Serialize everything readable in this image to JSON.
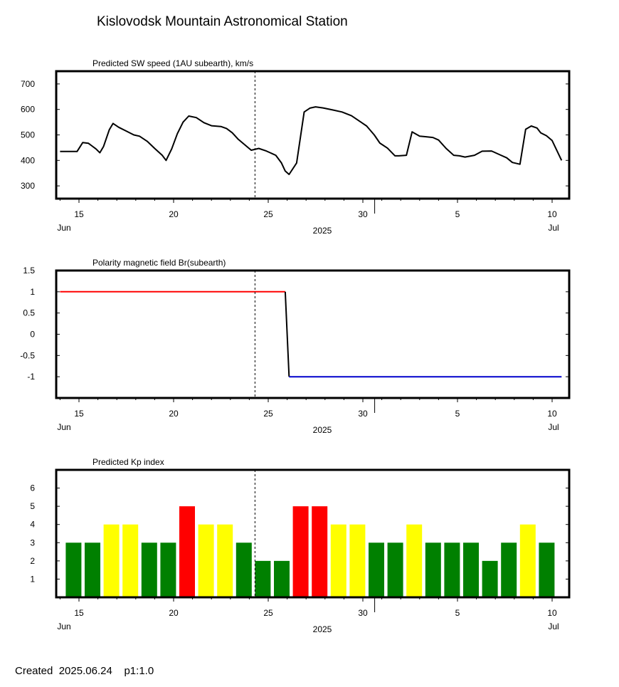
{
  "page": {
    "title": "Kislovodsk Mountain Astronomical Station",
    "footer_created_label": "Created",
    "footer_date": "2025.06.24",
    "footer_page": "p1:1.0"
  },
  "colors": {
    "line": "#000000",
    "positive_polarity": "#ff0000",
    "negative_polarity": "#0000cc",
    "kp_low": "#008000",
    "kp_mid": "#ffff00",
    "kp_high": "#ff0000"
  },
  "time_axis": {
    "start": "2025-06-14",
    "end": "2025-07-10",
    "ticks": [
      {
        "day": "2025-06-15",
        "label": "15"
      },
      {
        "day": "2025-06-20",
        "label": "20"
      },
      {
        "day": "2025-06-25",
        "label": "25"
      },
      {
        "day": "2025-06-30",
        "label": "30"
      },
      {
        "day": "2025-07-05",
        "label": "5"
      },
      {
        "day": "2025-07-10",
        "label": "10"
      }
    ],
    "month_labels": [
      {
        "day": "2025-06-14",
        "label": "Jun"
      },
      {
        "day": "2025-07-10",
        "label": "Jul"
      }
    ],
    "month_boundary": "2025-07-01",
    "year_label": "2025",
    "current_time_marker": "2025-06-24"
  },
  "chart_data": [
    {
      "type": "line",
      "title": "Predicted SW speed (1AU subearth), km/s",
      "xlabel": "2025",
      "ylabel": "",
      "ylim": [
        250,
        750
      ],
      "yticks": [
        "300",
        "400",
        "500",
        "600",
        "700"
      ],
      "series": [
        {
          "x": [
            "2025-06-14",
            "2025-06-14.9",
            "2025-06-15.2",
            "2025-06-15.5",
            "2025-06-15.9",
            "2025-06-16.1",
            "2025-06-16.3",
            "2025-06-16.6",
            "2025-06-16.8",
            "2025-06-17.1",
            "2025-06-17.5",
            "2025-06-17.9",
            "2025-06-18.2",
            "2025-06-18.6",
            "2025-06-19",
            "2025-06-19.4",
            "2025-06-19.6",
            "2025-06-19.9",
            "2025-06-20.2",
            "2025-06-20.5",
            "2025-06-20.8",
            "2025-06-21.2",
            "2025-06-21.6",
            "2025-06-22",
            "2025-06-22.5",
            "2025-06-22.8",
            "2025-06-23.1",
            "2025-06-23.4",
            "2025-06-23.7",
            "2025-06-24.1",
            "2025-06-24.5",
            "2025-06-24.9",
            "2025-06-25.4",
            "2025-06-25.7",
            "2025-06-25.9",
            "2025-06-26.1",
            "2025-06-26.5",
            "2025-06-26.9",
            "2025-06-27.2",
            "2025-06-27.5",
            "2025-06-27.9",
            "2025-06-28.4",
            "2025-06-28.9",
            "2025-06-29.4",
            "2025-06-29.8",
            "2025-06-30.2",
            "2025-06-30.6",
            "2025-06-30.9",
            "2025-07-01.3",
            "2025-07-01.7",
            "2025-07-01.9",
            "2025-07-02.3",
            "2025-07-02.6",
            "2025-07-03",
            "2025-07-03.3",
            "2025-07-03.7",
            "2025-07-04",
            "2025-07-04.4",
            "2025-07-04.8",
            "2025-07-05.1",
            "2025-07-05.4",
            "2025-07-05.9",
            "2025-07-06.3",
            "2025-07-06.8",
            "2025-07-07.3",
            "2025-07-07.6",
            "2025-07-07.9",
            "2025-07-08.3",
            "2025-07-08.6",
            "2025-07-08.9",
            "2025-07-09.2",
            "2025-07-09.4",
            "2025-07-09.7",
            "2025-07-10",
            "2025-07-10.5"
          ],
          "values": [
            435,
            435,
            470,
            467,
            445,
            430,
            455,
            520,
            545,
            530,
            515,
            500,
            495,
            475,
            447,
            420,
            400,
            445,
            505,
            550,
            574,
            568,
            548,
            536,
            533,
            525,
            508,
            484,
            465,
            440,
            447,
            437,
            420,
            390,
            358,
            345,
            390,
            590,
            605,
            610,
            606,
            598,
            590,
            575,
            555,
            535,
            500,
            468,
            448,
            418,
            418,
            420,
            512,
            495,
            493,
            490,
            480,
            447,
            420,
            418,
            413,
            420,
            436,
            437,
            420,
            410,
            392,
            385,
            522,
            535,
            527,
            508,
            497,
            478,
            400
          ]
        }
      ]
    },
    {
      "type": "line",
      "title": "Polarity magnetic field  Br(subearth)",
      "xlabel": "2025",
      "ylabel": "",
      "ylim": [
        -1.5,
        1.5
      ],
      "yticks": [
        "1.5",
        "1",
        "0.5",
        "0",
        "-0.5",
        "-1"
      ],
      "series": [
        {
          "name": "positive",
          "x": [
            "2025-06-14",
            "2025-06-25.9"
          ],
          "values": [
            1,
            1
          ]
        },
        {
          "name": "transition",
          "x": [
            "2025-06-25.9",
            "2025-06-26.1"
          ],
          "values": [
            1,
            -1
          ]
        },
        {
          "name": "negative",
          "x": [
            "2025-06-26.1",
            "2025-07-10.5"
          ],
          "values": [
            -1,
            -1
          ]
        }
      ]
    },
    {
      "type": "bar",
      "title": "Predicted Kp index",
      "xlabel": "2025",
      "ylabel": "",
      "ylim": [
        0,
        7
      ],
      "yticks": [
        "1",
        "2",
        "3",
        "4",
        "5",
        "6"
      ],
      "categories": [
        "2025-06-14",
        "2025-06-15",
        "2025-06-16",
        "2025-06-17",
        "2025-06-18",
        "2025-06-19",
        "2025-06-20",
        "2025-06-21",
        "2025-06-22",
        "2025-06-23",
        "2025-06-24",
        "2025-06-25",
        "2025-06-26",
        "2025-06-27",
        "2025-06-28",
        "2025-06-29",
        "2025-06-30",
        "2025-07-01",
        "2025-07-02",
        "2025-07-03",
        "2025-07-04",
        "2025-07-05",
        "2025-07-06",
        "2025-07-07",
        "2025-07-08",
        "2025-07-09"
      ],
      "values": [
        3,
        3,
        4,
        4,
        3,
        3,
        5,
        4,
        4,
        3,
        2,
        2,
        5,
        5,
        4,
        4,
        3,
        3,
        4,
        3,
        3,
        3,
        2,
        3,
        4,
        3
      ]
    }
  ]
}
